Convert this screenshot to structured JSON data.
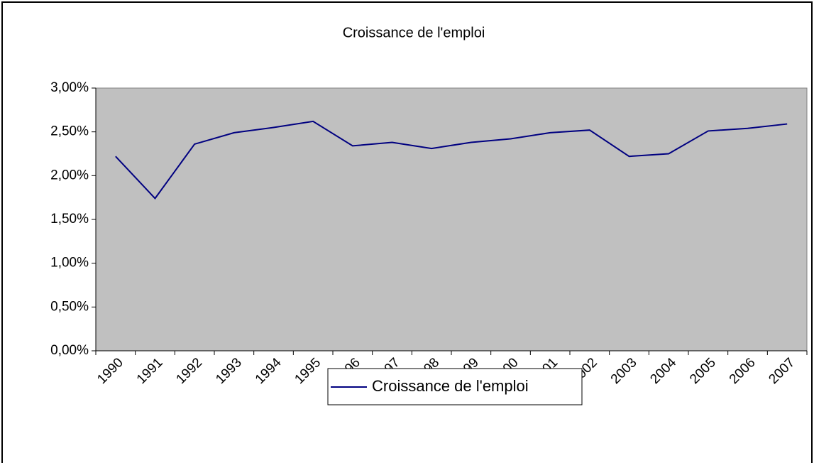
{
  "chart_data": {
    "type": "line",
    "title": "Croissance de l'emploi",
    "categories": [
      "1990",
      "1991",
      "1992",
      "1993",
      "1994",
      "1995",
      "1996",
      "1997",
      "1998",
      "1999",
      "2000",
      "2001",
      "2002",
      "2003",
      "2004",
      "2005",
      "2006",
      "2007"
    ],
    "series": [
      {
        "name": "Croissance de l'emploi",
        "color": "#000080",
        "values": [
          2.22,
          1.74,
          2.36,
          2.49,
          2.55,
          2.62,
          2.34,
          2.38,
          2.31,
          2.38,
          2.42,
          2.49,
          2.52,
          2.22,
          2.25,
          2.51,
          2.54,
          2.59
        ]
      }
    ],
    "ylim": [
      0,
      3
    ],
    "yticks": [
      {
        "value": 0,
        "label": "0,00%"
      },
      {
        "value": 0.5,
        "label": "0,50%"
      },
      {
        "value": 1,
        "label": "1,00%"
      },
      {
        "value": 1.5,
        "label": "1,50%"
      },
      {
        "value": 2,
        "label": "2,00%"
      },
      {
        "value": 2.5,
        "label": "2,50%"
      },
      {
        "value": 3,
        "label": "3,00%"
      }
    ],
    "grid": false,
    "plot_background": "#c0c0c0",
    "legend": "bottom"
  }
}
